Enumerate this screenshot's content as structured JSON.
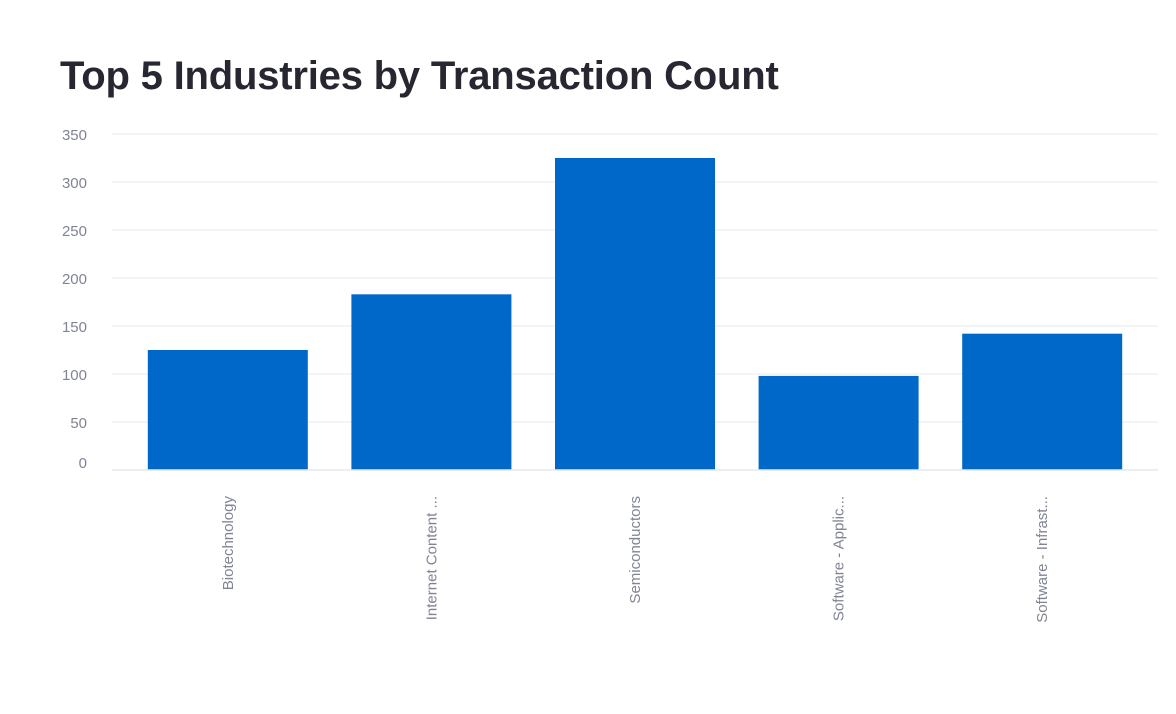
{
  "colors": {
    "bar": "#0068c9",
    "title": "#262730",
    "axis_text": "#808495",
    "grid": "#e6e9ef"
  },
  "chart_data": {
    "type": "bar",
    "title": "Top 5 Industries by Transaction Count",
    "xlabel": "",
    "ylabel": "",
    "categories": [
      "Biotechnology",
      "Internet Content ...",
      "Semiconductors",
      "Software - Applic...",
      "Software - Infrast..."
    ],
    "values": [
      125,
      183,
      325,
      98,
      142
    ],
    "ylim": [
      0,
      350
    ],
    "yticks": [
      0,
      50,
      100,
      150,
      200,
      250,
      300,
      350
    ],
    "grid": true,
    "legend": "none"
  }
}
